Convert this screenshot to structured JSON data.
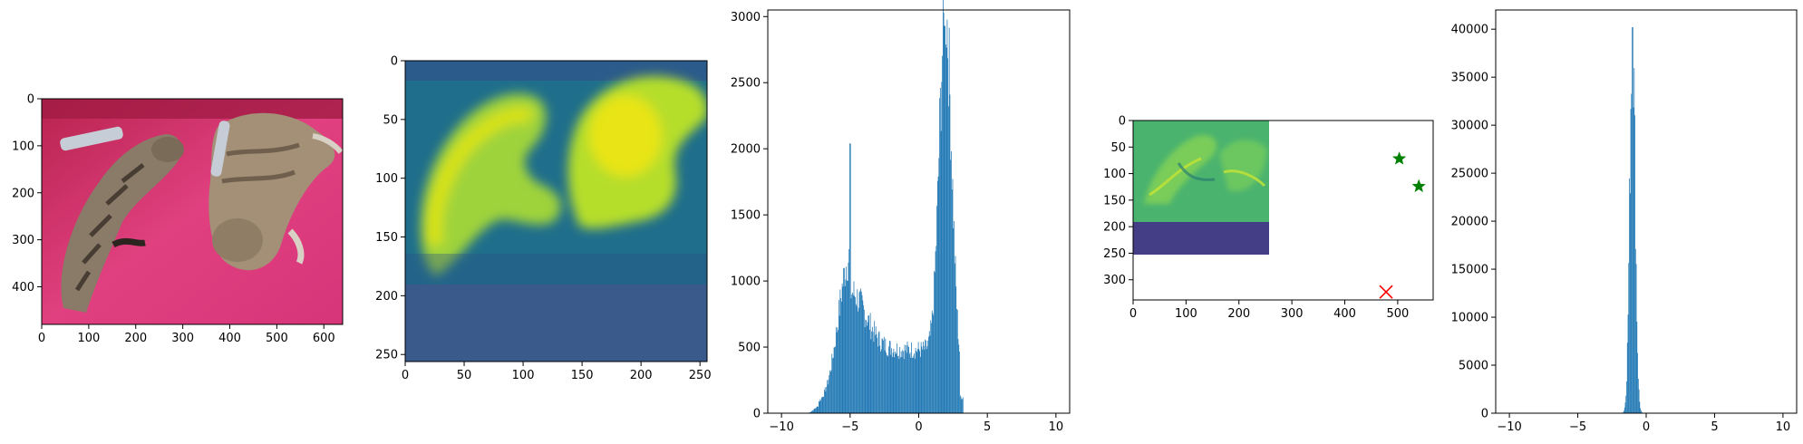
{
  "figure": {
    "panel_count": 5
  },
  "chart_data": [
    {
      "type": "image",
      "content": "photo of two tabby cats sleeping on a pink blanket with two TV remote controls",
      "colors": {
        "background": "#e0407f",
        "fur": "#9a8a76"
      },
      "xlim": [
        0,
        640
      ],
      "ylim": [
        480,
        0
      ],
      "xticks": [
        0,
        100,
        200,
        300,
        400,
        500,
        600
      ],
      "yticks": [
        0,
        100,
        200,
        300,
        400
      ]
    },
    {
      "type": "heatmap",
      "colormap": "viridis",
      "content": "low-resolution activation map; two bright yellow blobs over a teal/blue background, bottom band (rows 190-256) flat dark blue",
      "xlim": [
        0,
        256
      ],
      "ylim": [
        256,
        0
      ],
      "xticks": [
        0,
        50,
        100,
        150,
        200,
        250
      ],
      "yticks": [
        0,
        50,
        100,
        150,
        200,
        250
      ]
    },
    {
      "type": "histogram",
      "color": "#1f77b4",
      "xlim": [
        -11,
        11
      ],
      "ylim": [
        0,
        3050
      ],
      "xticks": [
        -10,
        -5,
        0,
        5,
        10
      ],
      "yticks": [
        0,
        500,
        1000,
        1500,
        2000,
        2500,
        3000
      ],
      "bin_width": 0.05,
      "peaks": [
        {
          "x": -5.0,
          "y": 2040
        },
        {
          "x": 1.9,
          "y": 2930
        }
      ],
      "range": [
        -8,
        3.2
      ],
      "minimum_between_peaks": {
        "x": -0.1,
        "y": 480
      }
    },
    {
      "type": "image+scatter",
      "content": "viridis image of cats occupying x 0-256, y 0-190, dark band y 190-256, plus markers",
      "xlim": [
        0,
        567
      ],
      "ylim": [
        338,
        0
      ],
      "xticks": [
        0,
        100,
        200,
        300,
        400,
        500
      ],
      "yticks": [
        0,
        50,
        100,
        150,
        200,
        250,
        300
      ],
      "markers": [
        {
          "x": 503,
          "y": 72,
          "marker": "star",
          "color": "#008000"
        },
        {
          "x": 540,
          "y": 124,
          "marker": "star",
          "color": "#008000"
        },
        {
          "x": 478,
          "y": 323,
          "marker": "x",
          "color": "#ff0000"
        }
      ]
    },
    {
      "type": "histogram",
      "color": "#1f77b4",
      "xlim": [
        -11,
        11
      ],
      "ylim": [
        0,
        42000
      ],
      "xticks": [
        -10,
        -5,
        0,
        5,
        10
      ],
      "yticks": [
        0,
        5000,
        10000,
        15000,
        20000,
        25000,
        30000,
        35000,
        40000
      ],
      "bin_width": 0.05,
      "peak": {
        "x": -1.0,
        "y": 40200
      },
      "range": [
        -1.7,
        -0.3
      ]
    }
  ]
}
